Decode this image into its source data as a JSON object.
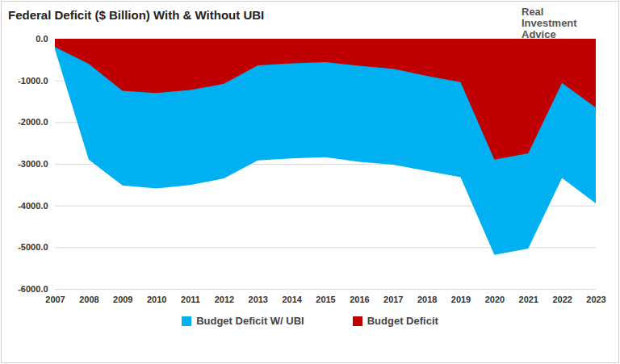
{
  "chart_data": {
    "type": "area",
    "title": "Federal Deficit ($ Billion) With & Without UBI",
    "annotations": [
      "Real Investment Advice"
    ],
    "x": [
      2007,
      2008,
      2009,
      2010,
      2011,
      2012,
      2013,
      2014,
      2015,
      2016,
      2017,
      2018,
      2019,
      2020,
      2021,
      2022,
      2023
    ],
    "series": [
      {
        "name": "Budget Deficit W/ UBI",
        "color": "#00b0f0",
        "values": [
          -250,
          -2900,
          -3520,
          -3590,
          -3510,
          -3350,
          -2920,
          -2870,
          -2840,
          -2950,
          -3020,
          -3170,
          -3320,
          -5180,
          -5030,
          -3340,
          -3950
        ]
      },
      {
        "name": "Budget Deficit",
        "color": "#c00000",
        "values": [
          -200,
          -600,
          -1250,
          -1300,
          -1230,
          -1080,
          -640,
          -590,
          -560,
          -650,
          -720,
          -890,
          -1040,
          -2900,
          -2750,
          -1060,
          -1650
        ]
      }
    ],
    "xlim": [
      2007,
      2023
    ],
    "xticks": [
      2007,
      2008,
      2009,
      2010,
      2011,
      2012,
      2013,
      2014,
      2015,
      2016,
      2017,
      2018,
      2019,
      2020,
      2021,
      2022,
      2023
    ],
    "ylim": [
      -6000,
      0
    ],
    "yticks": [
      {
        "value": 0,
        "label": "0.0"
      },
      {
        "value": -1000,
        "label": "-1000.0"
      },
      {
        "value": -2000,
        "label": "-2000.0"
      },
      {
        "value": -3000,
        "label": "-3000.0"
      },
      {
        "value": -4000,
        "label": "-4000.0"
      },
      {
        "value": -5000,
        "label": "-5000.0"
      },
      {
        "value": -6000,
        "label": "-6000.0"
      }
    ],
    "grid": true,
    "legend": "bottom"
  }
}
